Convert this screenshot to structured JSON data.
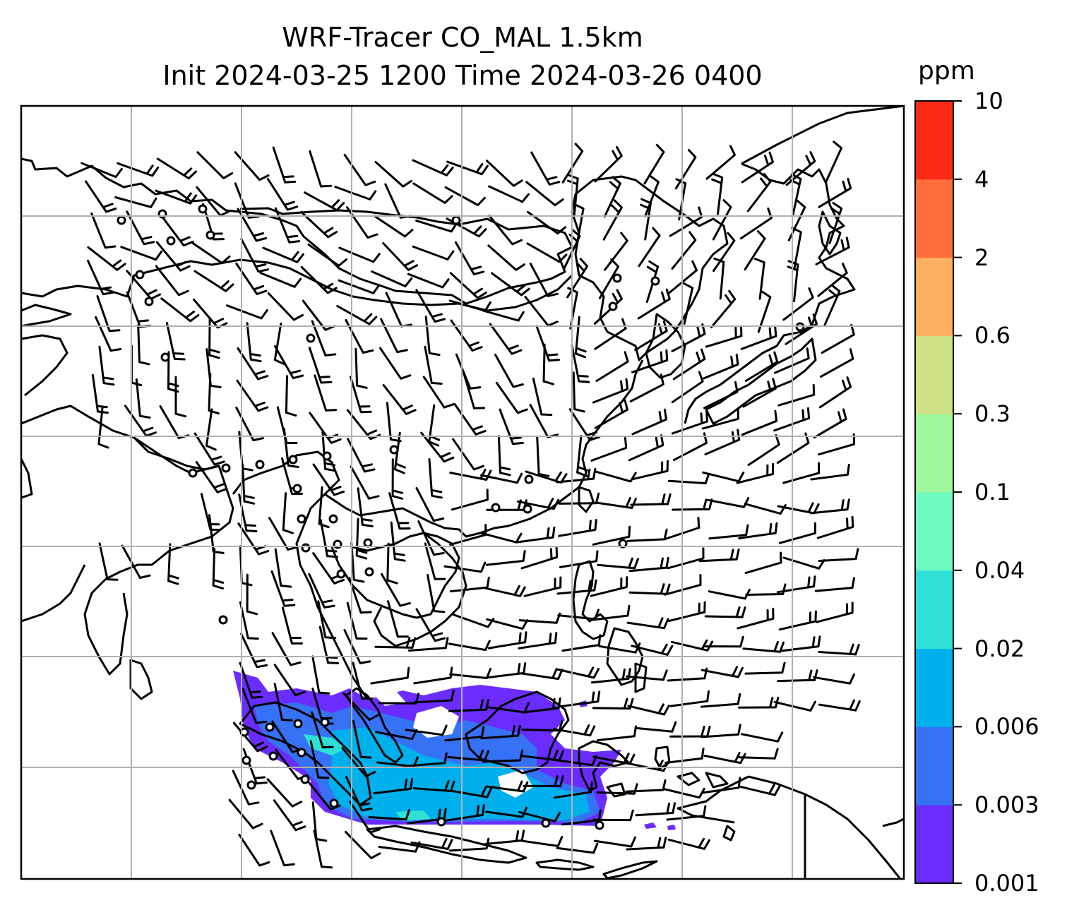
{
  "title": {
    "line1": "WRF-Tracer CO_MAL 1.5km",
    "line2": "Init 2024-03-25 1200 Time 2024-03-26 0400"
  },
  "colorbar": {
    "unit": "ppm",
    "ticks": [
      "0.001",
      "0.003",
      "0.006",
      "0.02",
      "0.04",
      "0.1",
      "0.3",
      "0.6",
      "2",
      "4",
      "10"
    ],
    "colors": [
      "#6a2cff",
      "#3672f5",
      "#00b0ec",
      "#2fe0d6",
      "#6cfac0",
      "#9cf89a",
      "#cde187",
      "#fdb060",
      "#fe6f3b",
      "#ff2a16"
    ]
  },
  "map": {
    "gridlines": true,
    "gridline_color": "#b0b0b0",
    "coast_color": "#000000",
    "wind_barbs": "black",
    "plume_region": "southern island chain"
  }
}
